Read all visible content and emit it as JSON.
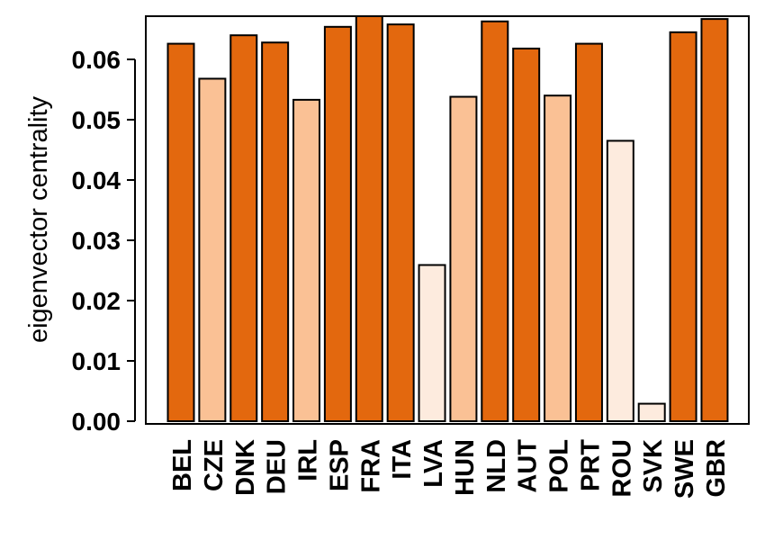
{
  "chart_data": {
    "type": "bar",
    "title": "",
    "xlabel": "",
    "ylabel": "eigenvector centrality",
    "ylim": [
      0,
      0.068
    ],
    "yticks": [
      0.0,
      0.01,
      0.02,
      0.03,
      0.04,
      0.05,
      0.06
    ],
    "ytick_labels": [
      "0.00",
      "0.01",
      "0.02",
      "0.03",
      "0.04",
      "0.05",
      "0.06"
    ],
    "grid": false,
    "categories": [
      "BEL",
      "CZE",
      "DNK",
      "DEU",
      "IRL",
      "ESP",
      "FRA",
      "ITA",
      "LVA",
      "HUN",
      "NLD",
      "AUT",
      "POL",
      "PRT",
      "ROU",
      "SVK",
      "SWE",
      "GBR"
    ],
    "values": [
      0.0626,
      0.0568,
      0.064,
      0.0628,
      0.0533,
      0.0654,
      0.068,
      0.0658,
      0.0259,
      0.0538,
      0.0663,
      0.0618,
      0.054,
      0.0626,
      0.0465,
      0.0029,
      0.0645,
      0.0667
    ],
    "colors": [
      "#e3680e",
      "#fac195",
      "#e3680e",
      "#e3680e",
      "#fac195",
      "#e3680e",
      "#e3680e",
      "#e3680e",
      "#fdebde",
      "#fac195",
      "#e3680e",
      "#e3680e",
      "#fac195",
      "#e3680e",
      "#fdebde",
      "#fdebde",
      "#e3680e",
      "#e3680e"
    ],
    "bar_edge_color": "#000000"
  }
}
